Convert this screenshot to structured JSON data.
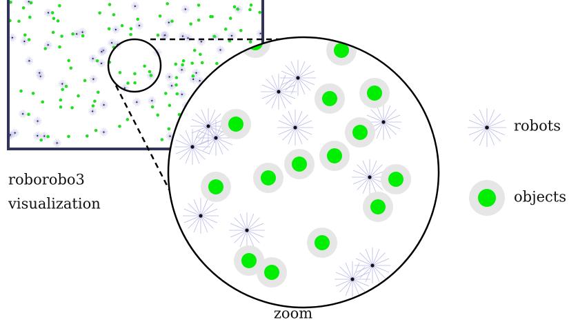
{
  "source_label": {
    "lines": [
      "roborobo3",
      "visualization"
    ]
  },
  "zoom_label": "zoom",
  "legend": {
    "robots": "robots",
    "objects": "objects"
  }
}
